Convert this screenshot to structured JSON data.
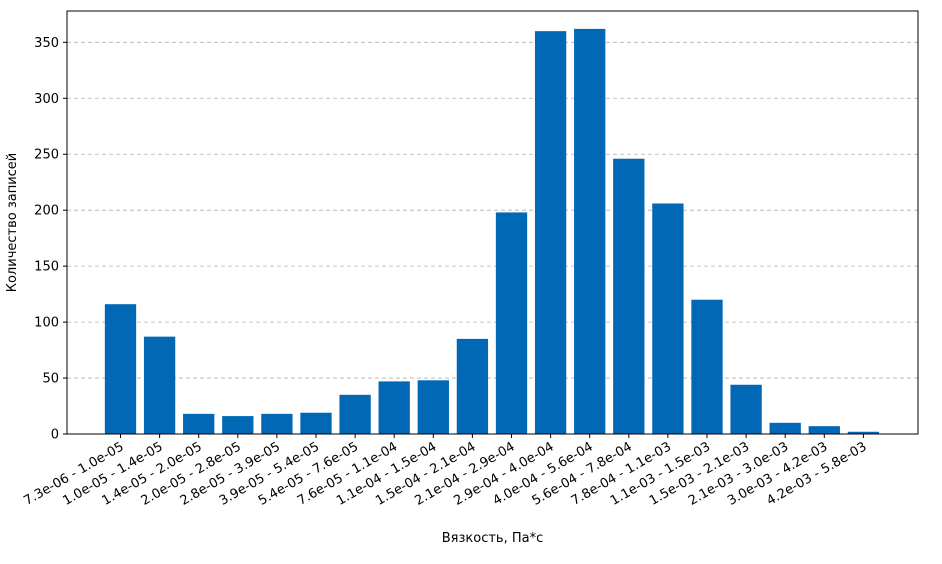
{
  "chart_data": {
    "type": "bar",
    "title": "",
    "xlabel": "Вязкость, Па*с",
    "ylabel": "Количество записей",
    "categories": [
      "7.3e-06 - 1.0e-05",
      "1.0e-05 - 1.4e-05",
      "1.4e-05 - 2.0e-05",
      "2.0e-05 - 2.8e-05",
      "2.8e-05 - 3.9e-05",
      "3.9e-05 - 5.4e-05",
      "5.4e-05 - 7.6e-05",
      "7.6e-05 - 1.1e-04",
      "1.1e-04 - 1.5e-04",
      "1.5e-04 - 2.1e-04",
      "2.1e-04 - 2.9e-04",
      "2.9e-04 - 4.0e-04",
      "4.0e-04 - 5.6e-04",
      "5.6e-04 - 7.8e-04",
      "7.8e-04 - 1.1e-03",
      "1.1e-03 - 1.5e-03",
      "1.5e-03 - 2.1e-03",
      "2.1e-03 - 3.0e-03",
      "3.0e-03 - 4.2e-03",
      "4.2e-03 - 5.8e-03"
    ],
    "values": [
      116,
      87,
      18,
      16,
      18,
      19,
      35,
      47,
      48,
      85,
      198,
      360,
      362,
      246,
      206,
      120,
      44,
      10,
      7,
      2
    ],
    "ylim": [
      0,
      378
    ],
    "yticks": [
      0,
      50,
      100,
      150,
      200,
      250,
      300,
      350
    ],
    "grid": "y-dashed",
    "colors": {
      "bar": "#0068b4",
      "grid": "#b0b0b0"
    }
  }
}
